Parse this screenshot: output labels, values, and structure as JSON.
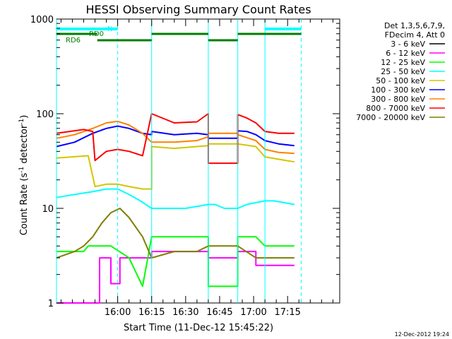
{
  "chart_data": {
    "type": "line",
    "title": "HESSI Observing Summary Count Rates",
    "xlabel": "Start Time (11-Dec-12 15:45:22)",
    "ylabel": "Count Rate (s⁻¹ detector⁻¹)",
    "ylabel_parts": [
      "Count Rate (s",
      "-1",
      " detector",
      "-1",
      ")"
    ],
    "yscale": "log",
    "ylim": [
      1,
      1000
    ],
    "xlim_min": [
      -12,
      113
    ],
    "y_ticks": [
      1,
      10,
      100,
      1000
    ],
    "y_tick_labels": [
      "1",
      "10",
      "100",
      "1000"
    ],
    "x_ticks": [
      15,
      30,
      45,
      60,
      75,
      90
    ],
    "x_tick_labels": [
      "16:00",
      "16:15",
      "16:30",
      "16:45",
      "17:00",
      "17:15"
    ],
    "legend_header": [
      "Det 1,3,5,6,7,9,",
      "FDecim 4, Att 0"
    ],
    "series": [
      {
        "name": "3 - 6 keV",
        "color": "#000000",
        "values": []
      },
      {
        "name": "6 - 12 keV",
        "color": "#ff00ff",
        "points": [
          [
            -12,
            1
          ],
          [
            7,
            1
          ],
          [
            7,
            3
          ],
          [
            12,
            3
          ],
          [
            12,
            1.6
          ],
          [
            16,
            1.6
          ],
          [
            16,
            3
          ],
          [
            30,
            3
          ],
          [
            30,
            3.5
          ],
          [
            55,
            3.5
          ],
          [
            55,
            3
          ],
          [
            68,
            3
          ],
          [
            68,
            3.5
          ],
          [
            76,
            3.5
          ],
          [
            76,
            2.5
          ],
          [
            93,
            2.5
          ]
        ]
      },
      {
        "name": "12 - 25 keV",
        "color": "#00ff00",
        "points": [
          [
            -12,
            3.5
          ],
          [
            0,
            3.5
          ],
          [
            2,
            4
          ],
          [
            12,
            4
          ],
          [
            20,
            3
          ],
          [
            26,
            1.5
          ],
          [
            30,
            5
          ],
          [
            55,
            5
          ],
          [
            55,
            1.5
          ],
          [
            68,
            1.5
          ],
          [
            68,
            5
          ],
          [
            76,
            5
          ],
          [
            80,
            4
          ],
          [
            93,
            4
          ]
        ]
      },
      {
        "name": "25 - 50 keV",
        "color": "#00ffff",
        "points": [
          [
            -12,
            13
          ],
          [
            -4,
            14
          ],
          [
            4,
            15
          ],
          [
            10,
            16
          ],
          [
            15,
            16
          ],
          [
            20,
            14
          ],
          [
            25,
            12
          ],
          [
            30,
            10
          ],
          [
            35,
            10
          ],
          [
            45,
            10
          ],
          [
            55,
            11
          ],
          [
            58,
            11
          ],
          [
            62,
            10
          ],
          [
            68,
            10
          ],
          [
            72,
            11
          ],
          [
            80,
            12
          ],
          [
            84,
            12
          ],
          [
            93,
            11
          ]
        ]
      },
      {
        "name": "50 - 100 keV",
        "color": "#d4c400",
        "points": [
          [
            -12,
            34
          ],
          [
            2,
            36
          ],
          [
            5,
            17
          ],
          [
            10,
            18
          ],
          [
            15,
            18
          ],
          [
            20,
            17
          ],
          [
            26,
            16
          ],
          [
            30,
            16
          ],
          [
            30,
            45
          ],
          [
            40,
            43
          ],
          [
            50,
            45
          ],
          [
            55,
            46
          ],
          [
            55,
            48
          ],
          [
            68,
            48
          ],
          [
            68,
            48
          ],
          [
            76,
            45
          ],
          [
            80,
            35
          ],
          [
            86,
            33
          ],
          [
            93,
            31
          ]
        ]
      },
      {
        "name": "100 - 300 keV",
        "color": "#0000ff",
        "points": [
          [
            -12,
            45
          ],
          [
            -4,
            50
          ],
          [
            4,
            62
          ],
          [
            10,
            70
          ],
          [
            15,
            74
          ],
          [
            20,
            70
          ],
          [
            26,
            62
          ],
          [
            30,
            60
          ],
          [
            30,
            65
          ],
          [
            40,
            60
          ],
          [
            50,
            62
          ],
          [
            55,
            60
          ],
          [
            55,
            55
          ],
          [
            68,
            55
          ],
          [
            68,
            66
          ],
          [
            72,
            65
          ],
          [
            76,
            60
          ],
          [
            80,
            52
          ],
          [
            86,
            48
          ],
          [
            93,
            46
          ]
        ]
      },
      {
        "name": "300 - 800 keV",
        "color": "#ff8000",
        "points": [
          [
            -12,
            55
          ],
          [
            -4,
            60
          ],
          [
            4,
            70
          ],
          [
            10,
            80
          ],
          [
            15,
            83
          ],
          [
            20,
            76
          ],
          [
            26,
            62
          ],
          [
            30,
            50
          ],
          [
            40,
            50
          ],
          [
            50,
            52
          ],
          [
            55,
            57
          ],
          [
            55,
            62
          ],
          [
            68,
            62
          ],
          [
            68,
            60
          ],
          [
            76,
            52
          ],
          [
            80,
            42
          ],
          [
            86,
            39
          ],
          [
            93,
            38
          ]
        ]
      },
      {
        "name": "800 - 7000 keV",
        "color": "#ff0000",
        "points": [
          [
            -12,
            62
          ],
          [
            0,
            68
          ],
          [
            4,
            65
          ],
          [
            5,
            32
          ],
          [
            10,
            40
          ],
          [
            15,
            42
          ],
          [
            20,
            40
          ],
          [
            26,
            36
          ],
          [
            30,
            100
          ],
          [
            40,
            80
          ],
          [
            50,
            82
          ],
          [
            55,
            100
          ],
          [
            55,
            30
          ],
          [
            68,
            30
          ],
          [
            68,
            98
          ],
          [
            72,
            90
          ],
          [
            76,
            80
          ],
          [
            80,
            65
          ],
          [
            86,
            62
          ],
          [
            93,
            62
          ]
        ]
      },
      {
        "name": "7000 - 20000 keV",
        "color": "#7f7f00",
        "points": [
          [
            -12,
            3
          ],
          [
            -4,
            3.5
          ],
          [
            0,
            4
          ],
          [
            4,
            5
          ],
          [
            8,
            7
          ],
          [
            12,
            9
          ],
          [
            16,
            10
          ],
          [
            20,
            8
          ],
          [
            26,
            5
          ],
          [
            30,
            3
          ],
          [
            40,
            3.5
          ],
          [
            50,
            3.5
          ],
          [
            55,
            4
          ],
          [
            68,
            4
          ],
          [
            76,
            3
          ],
          [
            80,
            3
          ],
          [
            93,
            3
          ]
        ]
      }
    ],
    "vertical_markers": [
      {
        "x": -12,
        "style": "solid",
        "color": "#00ffff"
      },
      {
        "x": 15,
        "style": "dashed",
        "color": "#00ffff"
      },
      {
        "x": 30,
        "style": "solid",
        "color": "#00ffff"
      },
      {
        "x": 55,
        "style": "solid",
        "color": "#00ffff"
      },
      {
        "x": 68,
        "style": "solid",
        "color": "#00ffff"
      },
      {
        "x": 80,
        "style": "solid",
        "color": "#00ffff"
      },
      {
        "x": 96,
        "style": "dashed",
        "color": "#00ffff"
      }
    ],
    "flag_bars": [
      {
        "label": "N",
        "color": "#00ffff",
        "segments": [
          [
            -12,
            15
          ],
          [
            80,
            96
          ]
        ],
        "level": 0
      },
      {
        "label": "RD0",
        "color": "#007f00",
        "segments": [
          [
            -12,
            6
          ],
          [
            30,
            55
          ],
          [
            68,
            96
          ]
        ],
        "level": 1
      },
      {
        "label": "RD6",
        "color": "#007f00",
        "segments": [
          [
            6,
            30
          ],
          [
            55,
            68
          ]
        ],
        "level": 2
      }
    ]
  },
  "footer": {
    "timestamp": "12-Dec-2012 19:24"
  }
}
